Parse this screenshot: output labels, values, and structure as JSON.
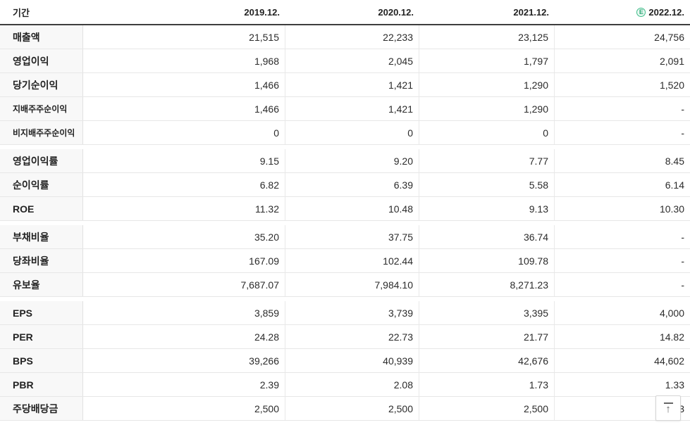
{
  "header": {
    "period_label": "기간",
    "columns": [
      {
        "label": "2019.12.",
        "estimate_badge": null
      },
      {
        "label": "2020.12.",
        "estimate_badge": null
      },
      {
        "label": "2021.12.",
        "estimate_badge": null
      },
      {
        "label": "2022.12.",
        "estimate_badge": "E"
      }
    ]
  },
  "groups": [
    {
      "rows": [
        {
          "label": "매출액",
          "sub": false,
          "values": [
            "21,515",
            "22,233",
            "23,125",
            "24,756"
          ]
        },
        {
          "label": "영업이익",
          "sub": false,
          "values": [
            "1,968",
            "2,045",
            "1,797",
            "2,091"
          ]
        },
        {
          "label": "당기순이익",
          "sub": false,
          "values": [
            "1,466",
            "1,421",
            "1,290",
            "1,520"
          ]
        },
        {
          "label": "지배주주순이익",
          "sub": true,
          "values": [
            "1,466",
            "1,421",
            "1,290",
            "-"
          ]
        },
        {
          "label": "비지배주주순이익",
          "sub": true,
          "values": [
            "0",
            "0",
            "0",
            "-"
          ]
        }
      ]
    },
    {
      "rows": [
        {
          "label": "영업이익률",
          "sub": false,
          "values": [
            "9.15",
            "9.20",
            "7.77",
            "8.45"
          ]
        },
        {
          "label": "순이익률",
          "sub": false,
          "values": [
            "6.82",
            "6.39",
            "5.58",
            "6.14"
          ]
        },
        {
          "label": "ROE",
          "sub": false,
          "values": [
            "11.32",
            "10.48",
            "9.13",
            "10.30"
          ]
        }
      ]
    },
    {
      "rows": [
        {
          "label": "부채비율",
          "sub": false,
          "values": [
            "35.20",
            "37.75",
            "36.74",
            "-"
          ]
        },
        {
          "label": "당좌비율",
          "sub": false,
          "values": [
            "167.09",
            "102.44",
            "109.78",
            "-"
          ]
        },
        {
          "label": "유보율",
          "sub": false,
          "values": [
            "7,687.07",
            "7,984.10",
            "8,271.23",
            "-"
          ]
        }
      ]
    },
    {
      "rows": [
        {
          "label": "EPS",
          "sub": false,
          "values": [
            "3,859",
            "3,739",
            "3,395",
            "4,000"
          ]
        },
        {
          "label": "PER",
          "sub": false,
          "values": [
            "24.28",
            "22.73",
            "21.77",
            "14.82"
          ]
        },
        {
          "label": "BPS",
          "sub": false,
          "values": [
            "39,266",
            "40,939",
            "42,676",
            "44,602"
          ]
        },
        {
          "label": "PBR",
          "sub": false,
          "values": [
            "2.39",
            "2.08",
            "1.73",
            "1.33"
          ]
        },
        {
          "label": "주당배당금",
          "sub": false,
          "values": [
            "2,500",
            "2,500",
            "2,500",
            "3"
          ]
        }
      ]
    }
  ],
  "scroll_top": {
    "icon": "arrow-up-to-top",
    "glyph": "↑"
  },
  "colors": {
    "estimate_green": "#2aa876",
    "header_border": "#3e3e3e",
    "row_border": "#e7e7e7",
    "label_bg": "#f8f8f8"
  }
}
